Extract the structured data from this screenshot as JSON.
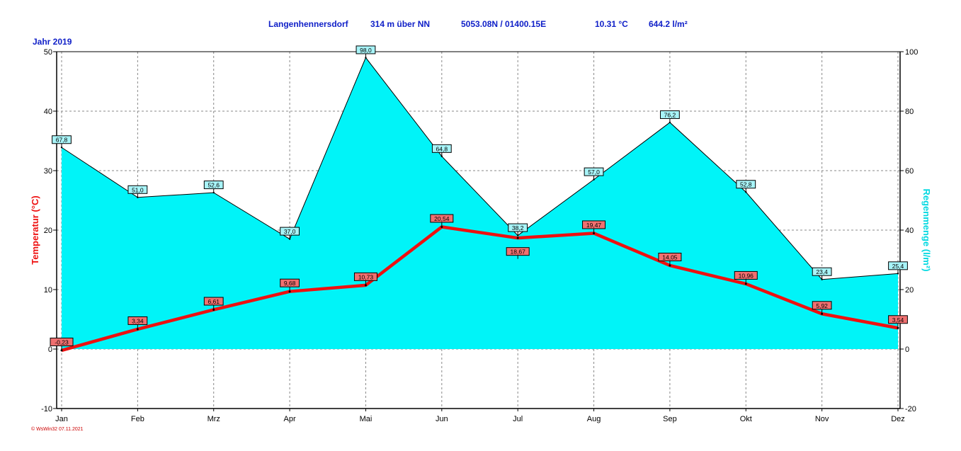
{
  "header": {
    "station": "Langenhennersdorf",
    "elevation": "314 m über NN",
    "coords": "5053.08N / 01400.15E",
    "mean_temp": "10.31 °C",
    "total_rain": "644.2 l/m²"
  },
  "year_label": "Jahr  2019",
  "credit": "© WsWin32  07.11.2021",
  "chart_data": {
    "type": "line+area",
    "categories": [
      "Jan",
      "Feb",
      "Mrz",
      "Apr",
      "Mai",
      "Jun",
      "Jul",
      "Aug",
      "Sep",
      "Okt",
      "Nov",
      "Dez"
    ],
    "y_left": {
      "label": "Temperatur  (°C)",
      "min": -10,
      "max": 50,
      "ticks": [
        -10,
        0,
        10,
        20,
        30,
        40,
        50
      ]
    },
    "y_right": {
      "label": "Regenmenge  (l/m²)",
      "min": -20,
      "max": 100,
      "ticks": [
        -20,
        0,
        20,
        40,
        60,
        80,
        100
      ]
    },
    "grid": true,
    "series": [
      {
        "name": "Regenmenge",
        "kind": "area",
        "axis": "right",
        "color": "#00f4f8",
        "values": [
          67.8,
          51.0,
          52.6,
          37.0,
          98.0,
          64.8,
          38.2,
          57.0,
          76.2,
          52.8,
          23.4,
          25.4
        ],
        "labels": [
          "67,8",
          "51,0",
          "52,6",
          "37,0",
          "98,0",
          "64,8",
          "38,2",
          "57,0",
          "76,2",
          "52,8",
          "23,4",
          "25,4"
        ]
      },
      {
        "name": "Temperatur",
        "kind": "line",
        "axis": "left",
        "color": "#ee1010",
        "values": [
          -0.23,
          3.34,
          6.61,
          9.68,
          10.73,
          20.54,
          18.67,
          19.47,
          14.05,
          10.96,
          5.92,
          3.54
        ],
        "labels": [
          "-0,23",
          "3,34",
          "6,61",
          "9,68",
          "10,73",
          "20,54",
          "18,67",
          "19,47",
          "14,05",
          "10,96",
          "5,92",
          "3,54"
        ]
      }
    ]
  }
}
